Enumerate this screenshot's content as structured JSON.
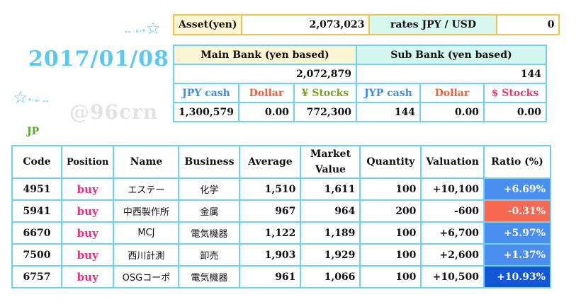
{
  "date": "2017/01/08",
  "watermark": "@96crn",
  "section_label": "JP",
  "asset": {
    "label": "Asset(yen)",
    "value": "2,073,023",
    "rates_label": "rates  JPY / USD",
    "rates_value": "0"
  },
  "main_bank": {
    "title": "Main Bank (yen based)",
    "total": "2,072,879",
    "headers": [
      "JPY cash",
      "Dollar",
      "¥ Stocks"
    ],
    "values": [
      "1,300,579",
      "0.00",
      "772,300"
    ]
  },
  "sub_bank": {
    "title": "Sub Bank (yen based)",
    "total": "144",
    "headers": [
      "JYP cash",
      "Dollar",
      "$ Stocks"
    ],
    "values": [
      "144",
      "0.00",
      "0.00"
    ]
  },
  "holdings": {
    "columns": [
      "Code",
      "Position",
      "Name",
      "Business",
      "Average",
      "Market\nValue",
      "Quantity",
      "Valuation",
      "Ratio (%)"
    ],
    "rows": [
      {
        "code": "4951",
        "position": "buy",
        "name": "エステー",
        "business": "化学",
        "average": "1,510",
        "market": "1,611",
        "quantity": "100",
        "valuation": "+10,100",
        "ratio": "+6.69%",
        "ratio_color": "#4a8ff0"
      },
      {
        "code": "5941",
        "position": "buy",
        "name": "中西製作所",
        "business": "金属",
        "average": "967",
        "market": "964",
        "quantity": "200",
        "valuation": "-600",
        "ratio": "-0.31%",
        "ratio_color": "#f76952"
      },
      {
        "code": "6670",
        "position": "buy",
        "name": "MCJ",
        "business": "電気機器",
        "average": "1,122",
        "market": "1,189",
        "quantity": "100",
        "valuation": "+6,700",
        "ratio": "+5.97%",
        "ratio_color": "#4a8ff0"
      },
      {
        "code": "7500",
        "position": "buy",
        "name": "西川計測",
        "business": "卸売",
        "average": "1,903",
        "market": "1,929",
        "quantity": "100",
        "valuation": "+2,600",
        "ratio": "+1.37%",
        "ratio_color": "#4a8ff0"
      },
      {
        "code": "6757",
        "position": "buy",
        "name": "OSGコーポ",
        "business": "電気機器",
        "average": "961",
        "market": "1,066",
        "quantity": "100",
        "valuation": "+10,500",
        "ratio": "+10.93%",
        "ratio_color": "#1356d8"
      }
    ]
  }
}
